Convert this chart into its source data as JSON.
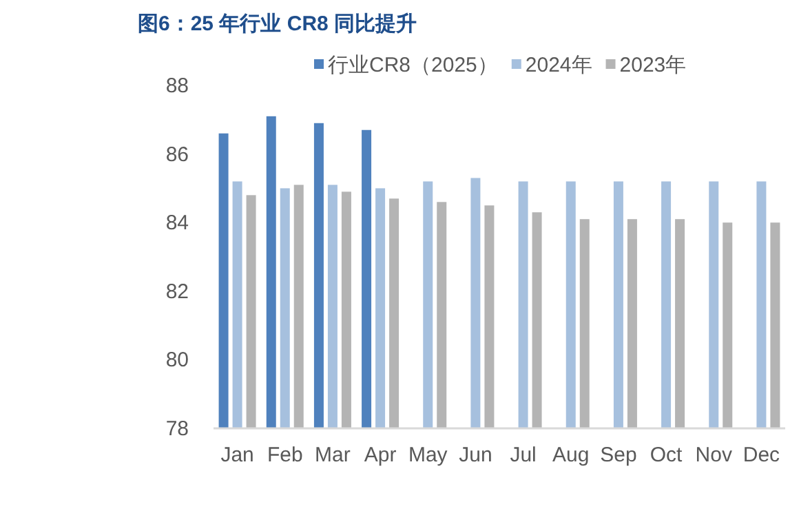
{
  "chart_data": {
    "type": "bar",
    "title": "图6：25 年行业 CR8 同比提升",
    "categories": [
      "Jan",
      "Feb",
      "Mar",
      "Apr",
      "May",
      "Jun",
      "Jul",
      "Aug",
      "Sep",
      "Oct",
      "Nov",
      "Dec"
    ],
    "series": [
      {
        "name": "行业CR8（2025）",
        "color": "#4f81bd",
        "values": [
          86.6,
          87.1,
          86.9,
          86.7,
          null,
          null,
          null,
          null,
          null,
          null,
          null,
          null
        ]
      },
      {
        "name": "2024年",
        "color": "#a6c0de",
        "values": [
          85.2,
          85.0,
          85.1,
          85.0,
          85.2,
          85.3,
          85.2,
          85.2,
          85.2,
          85.2,
          85.2,
          85.2
        ]
      },
      {
        "name": "2023年",
        "color": "#b4b4b4",
        "values": [
          84.8,
          85.1,
          84.9,
          84.7,
          84.6,
          84.5,
          84.3,
          84.1,
          84.1,
          84.1,
          84.0,
          84.0
        ]
      }
    ],
    "ylim": [
      78,
      88
    ],
    "yticks": [
      78,
      80,
      82,
      84,
      86,
      88
    ],
    "grid": false,
    "legend": "top"
  }
}
